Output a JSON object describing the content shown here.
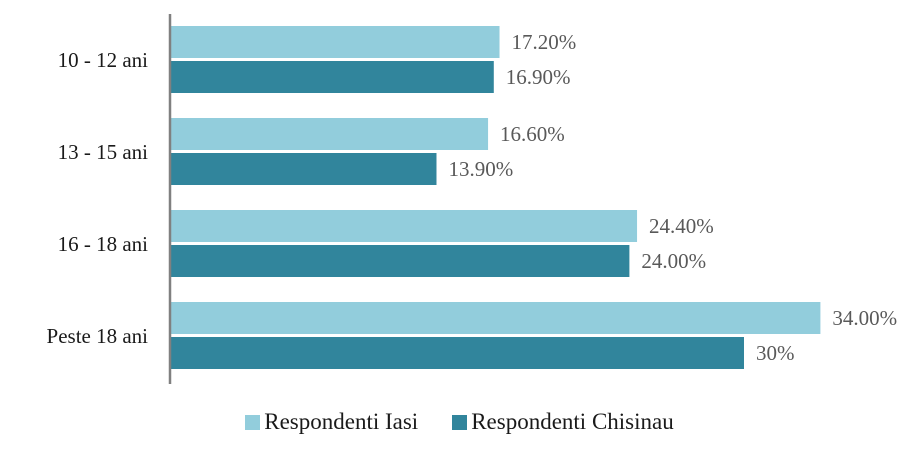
{
  "chart_data": {
    "type": "bar",
    "orientation": "horizontal",
    "categories": [
      "10 - 12 ani",
      "13 - 15 ani",
      "16 - 18 ani",
      "Peste 18 ani"
    ],
    "series": [
      {
        "name": "Respondenti Iasi",
        "color": "#92CDDC",
        "values": [
          17.2,
          16.6,
          24.4,
          34.0
        ],
        "labels": [
          "17.20%",
          "16.60%",
          "24.40%",
          "34.00%"
        ]
      },
      {
        "name": "Respondenti Chisinau",
        "color": "#31859C",
        "values": [
          16.9,
          13.9,
          24.0,
          30.0
        ],
        "labels": [
          "16.90%",
          "13.90%",
          "24.00%",
          "30%"
        ]
      }
    ],
    "xlim": [
      0,
      40
    ],
    "grid": false,
    "legend_position": "bottom"
  }
}
